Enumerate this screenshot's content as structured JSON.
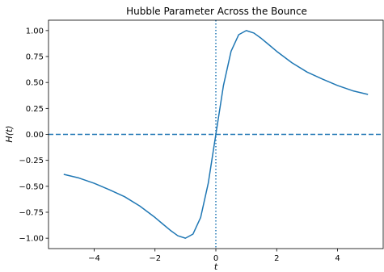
{
  "chart_data": {
    "type": "line",
    "title": "Hubble Parameter Across the Bounce",
    "xlabel": "t",
    "ylabel": "H(t)",
    "xlim": [
      -5.5,
      5.5
    ],
    "ylim": [
      -1.1,
      1.1
    ],
    "x_ticks": [
      -4,
      -2,
      0,
      2,
      4
    ],
    "x_tick_labels": [
      "−4",
      "−2",
      "0",
      "2",
      "4"
    ],
    "y_ticks": [
      -1.0,
      -0.75,
      -0.5,
      -0.25,
      0.0,
      0.25,
      0.5,
      0.75,
      1.0
    ],
    "y_tick_labels": [
      "−1.00",
      "−0.75",
      "−0.50",
      "−0.25",
      "0.00",
      "0.25",
      "0.50",
      "0.75",
      "1.00"
    ],
    "grid": false,
    "legend": "none",
    "series": [
      {
        "color": "#1f77b4",
        "x": [
          -5,
          -4.5,
          -4,
          -3.5,
          -3,
          -2.5,
          -2,
          -1.75,
          -1.5,
          -1.25,
          -1,
          -0.75,
          -0.5,
          -0.25,
          0,
          0.25,
          0.5,
          0.75,
          1,
          1.25,
          1.5,
          1.75,
          2,
          2.5,
          3,
          3.5,
          4,
          4.5,
          5
        ],
        "y": [
          -0.385,
          -0.42,
          -0.471,
          -0.533,
          -0.6,
          -0.69,
          -0.8,
          -0.862,
          -0.923,
          -0.976,
          -1.0,
          -0.96,
          -0.8,
          -0.471,
          0.0,
          0.471,
          0.8,
          0.96,
          1.0,
          0.976,
          0.923,
          0.862,
          0.8,
          0.69,
          0.6,
          0.533,
          0.471,
          0.42,
          0.385
        ]
      }
    ],
    "reference_lines": [
      {
        "orientation": "horizontal",
        "value": 0,
        "style": "dashed",
        "color": "#1f77b4"
      },
      {
        "orientation": "vertical",
        "value": 0,
        "style": "dotted",
        "color": "#1f77b4"
      }
    ]
  }
}
